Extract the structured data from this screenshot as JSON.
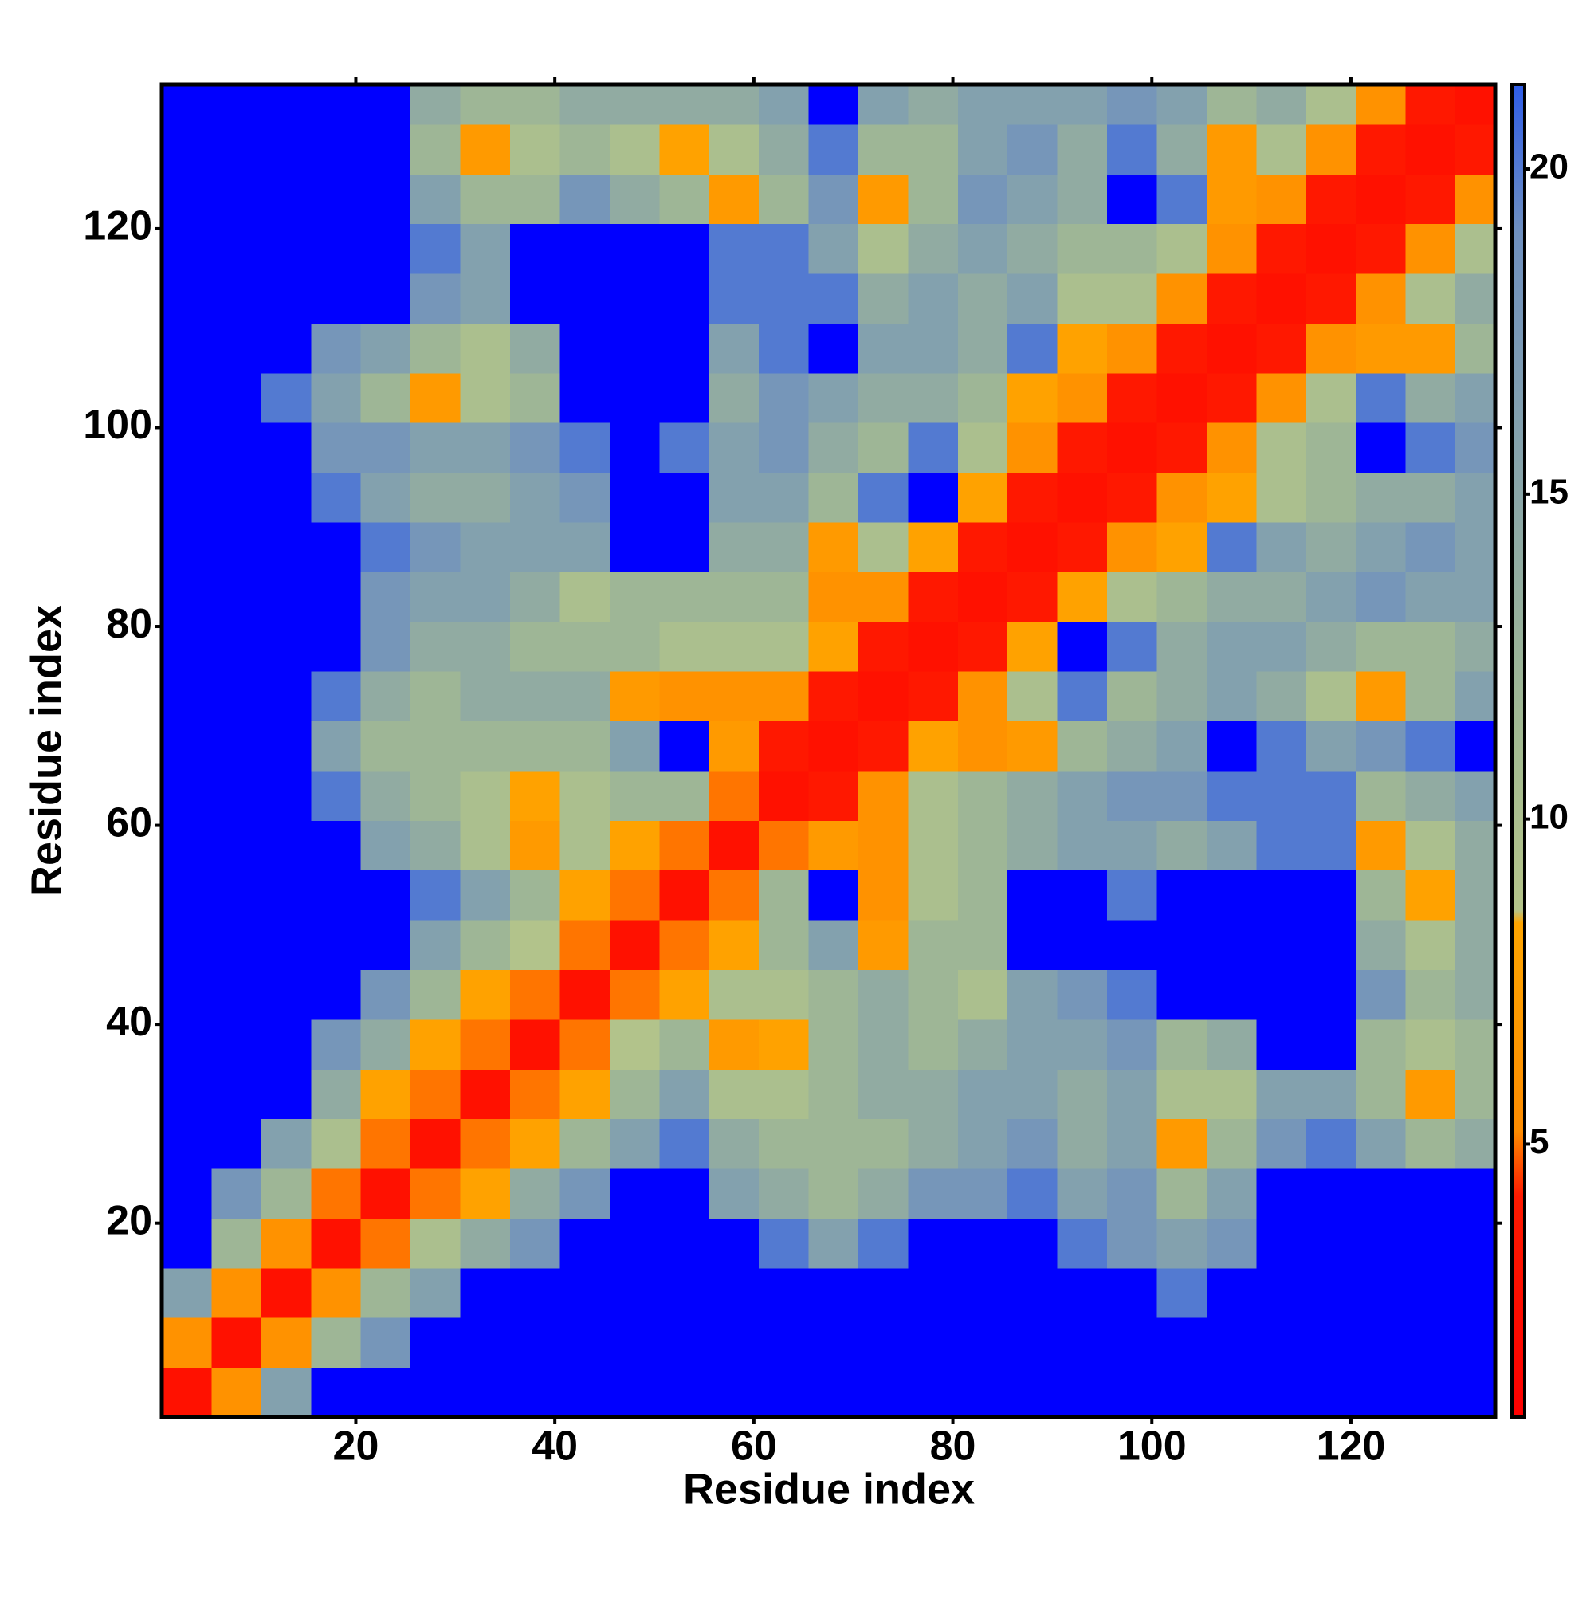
{
  "chart_data": {
    "type": "heatmap",
    "x_label": "Residue index",
    "y_label": "Residue index",
    "xlim": [
      0.5,
      134.5
    ],
    "ylim": [
      0.5,
      134.5
    ],
    "xticks": [
      20,
      40,
      60,
      80,
      100,
      120
    ],
    "yticks": [
      20,
      40,
      60,
      80,
      100,
      120
    ],
    "x_bins": [
      0.5,
      5.5,
      10.5,
      15.5,
      20.5,
      25.5,
      30.5,
      35.5,
      40.5,
      45.5,
      50.5,
      55.5,
      60.5,
      65.5,
      70.5,
      75.5,
      80.5,
      85.5,
      90.5,
      95.5,
      100.5,
      105.5,
      110.5,
      115.5,
      120.5,
      125.5,
      130.5,
      134.5
    ],
    "y_bins": [
      0.5,
      5.5,
      10.5,
      15.5,
      20.5,
      25.5,
      30.5,
      35.5,
      40.5,
      45.5,
      50.5,
      55.5,
      60.5,
      65.5,
      70.5,
      75.5,
      80.5,
      85.5,
      90.5,
      95.5,
      100.5,
      105.5,
      110.5,
      115.5,
      120.5,
      125.5,
      130.5,
      134.5
    ],
    "zlim": [
      0.8,
      21.3
    ],
    "zticks": [
      5,
      10,
      15,
      20
    ],
    "colorscale": [
      [
        0.8,
        "#ff0000"
      ],
      [
        4.2,
        "#ff1a00"
      ],
      [
        5.2,
        "#ff8c00"
      ],
      [
        8.4,
        "#ffa500"
      ],
      [
        8.6,
        "#b5c48a"
      ],
      [
        11,
        "#a4bb90"
      ],
      [
        15,
        "#8aa6a8"
      ],
      [
        19,
        "#6f90bf"
      ],
      [
        21.3,
        "#2f5de8"
      ]
    ],
    "over_color": "#0000ff",
    "values": [
      [
        3,
        6,
        16,
        25,
        25,
        25,
        25,
        25,
        25,
        25,
        25,
        25,
        25,
        25,
        25,
        25,
        25,
        25,
        25,
        25,
        25,
        25,
        25,
        25,
        25,
        25,
        25
      ],
      [
        6,
        3,
        6,
        12,
        18,
        25,
        25,
        25,
        25,
        25,
        25,
        25,
        25,
        25,
        25,
        25,
        25,
        25,
        25,
        25,
        25,
        25,
        25,
        25,
        25,
        25,
        25
      ],
      [
        16,
        6,
        3,
        6,
        12,
        16,
        25,
        25,
        25,
        25,
        25,
        25,
        25,
        25,
        25,
        25,
        25,
        25,
        25,
        25,
        20,
        25,
        25,
        25,
        25,
        25,
        25
      ],
      [
        25,
        12,
        6,
        3,
        5,
        10,
        14,
        18,
        25,
        25,
        25,
        25,
        20,
        16,
        20,
        25,
        25,
        25,
        20,
        18,
        16,
        18,
        25,
        25,
        25,
        25,
        25
      ],
      [
        25,
        18,
        12,
        5,
        3,
        5,
        8,
        14,
        18,
        25,
        25,
        16,
        14,
        12,
        14,
        18,
        18,
        20,
        16,
        18,
        12,
        16,
        25,
        25,
        25,
        25,
        25
      ],
      [
        25,
        25,
        16,
        10,
        5,
        3,
        5,
        8,
        12,
        16,
        20,
        14,
        12,
        12,
        12,
        14,
        16,
        18,
        14,
        16,
        7,
        12,
        18,
        20,
        16,
        12,
        14
      ],
      [
        25,
        25,
        25,
        14,
        8,
        5,
        3,
        5,
        8,
        12,
        16,
        10,
        10,
        12,
        14,
        14,
        16,
        16,
        14,
        16,
        10,
        10,
        16,
        16,
        12,
        7,
        12
      ],
      [
        25,
        25,
        25,
        18,
        14,
        8,
        5,
        3,
        5,
        9,
        12,
        7,
        8,
        12,
        14,
        12,
        14,
        16,
        16,
        18,
        12,
        14,
        25,
        25,
        12,
        10,
        12
      ],
      [
        25,
        25,
        25,
        25,
        18,
        12,
        8,
        5,
        3,
        5,
        8,
        10,
        10,
        12,
        14,
        12,
        10,
        16,
        18,
        20,
        25,
        25,
        25,
        25,
        18,
        12,
        14
      ],
      [
        25,
        25,
        25,
        25,
        25,
        16,
        12,
        9,
        5,
        3,
        5,
        8,
        12,
        16,
        7,
        12,
        12,
        25,
        25,
        25,
        25,
        25,
        25,
        25,
        14,
        10,
        14
      ],
      [
        25,
        25,
        25,
        25,
        25,
        20,
        16,
        12,
        8,
        5,
        3,
        5,
        12,
        25,
        6,
        10,
        12,
        25,
        25,
        20,
        25,
        25,
        25,
        25,
        12,
        8,
        14
      ],
      [
        25,
        25,
        25,
        25,
        16,
        14,
        10,
        7,
        10,
        8,
        5,
        3,
        5,
        7,
        6,
        10,
        12,
        14,
        16,
        16,
        14,
        16,
        20,
        20,
        7,
        10,
        14
      ],
      [
        25,
        25,
        25,
        20,
        14,
        12,
        10,
        8,
        10,
        12,
        12,
        5,
        3,
        4,
        6,
        10,
        12,
        14,
        16,
        18,
        18,
        20,
        20,
        20,
        12,
        14,
        16
      ],
      [
        25,
        25,
        25,
        16,
        12,
        12,
        12,
        12,
        12,
        16,
        25,
        7,
        4,
        3,
        4,
        8,
        6,
        7,
        12,
        14,
        16,
        25,
        20,
        16,
        18,
        20,
        25
      ],
      [
        25,
        25,
        25,
        20,
        14,
        12,
        14,
        14,
        14,
        7,
        6,
        6,
        6,
        4,
        3,
        4,
        6,
        10,
        20,
        12,
        14,
        16,
        14,
        10,
        7,
        12,
        16
      ],
      [
        25,
        25,
        25,
        25,
        18,
        14,
        14,
        12,
        12,
        12,
        10,
        10,
        10,
        8,
        4,
        3,
        4,
        8,
        25,
        20,
        14,
        16,
        16,
        14,
        12,
        12,
        14
      ],
      [
        25,
        25,
        25,
        25,
        18,
        16,
        16,
        14,
        10,
        12,
        12,
        12,
        12,
        6,
        6,
        4,
        3,
        4,
        8,
        10,
        12,
        14,
        14,
        16,
        18,
        16,
        16
      ],
      [
        25,
        25,
        25,
        25,
        20,
        18,
        16,
        16,
        16,
        25,
        25,
        14,
        14,
        7,
        10,
        8,
        4,
        3,
        4,
        6,
        8,
        20,
        16,
        14,
        16,
        18,
        16
      ],
      [
        25,
        25,
        25,
        20,
        16,
        14,
        14,
        16,
        18,
        25,
        25,
        16,
        16,
        12,
        20,
        25,
        8,
        4,
        3,
        4,
        6,
        8,
        10,
        12,
        14,
        14,
        16
      ],
      [
        25,
        25,
        25,
        18,
        18,
        16,
        16,
        18,
        20,
        25,
        20,
        16,
        18,
        14,
        12,
        20,
        10,
        6,
        4,
        3,
        4,
        6,
        10,
        12,
        25,
        20,
        18
      ],
      [
        25,
        25,
        20,
        16,
        12,
        7,
        10,
        12,
        25,
        25,
        25,
        14,
        18,
        16,
        14,
        14,
        12,
        8,
        6,
        4,
        3,
        4,
        6,
        10,
        20,
        14,
        16
      ],
      [
        25,
        25,
        25,
        18,
        16,
        12,
        10,
        14,
        25,
        25,
        25,
        16,
        20,
        25,
        16,
        16,
        14,
        20,
        8,
        6,
        4,
        3,
        4,
        6,
        7,
        7,
        12
      ],
      [
        25,
        25,
        25,
        25,
        25,
        18,
        16,
        25,
        25,
        25,
        25,
        20,
        20,
        20,
        14,
        16,
        14,
        16,
        10,
        10,
        6,
        4,
        3,
        4,
        6,
        10,
        14
      ],
      [
        25,
        25,
        25,
        25,
        25,
        20,
        16,
        25,
        25,
        25,
        25,
        20,
        20,
        16,
        10,
        14,
        16,
        14,
        12,
        12,
        10,
        6,
        4,
        3,
        4,
        6,
        10
      ],
      [
        25,
        25,
        25,
        25,
        25,
        16,
        12,
        12,
        18,
        14,
        12,
        7,
        12,
        18,
        7,
        12,
        18,
        16,
        14,
        25,
        20,
        7,
        6,
        4,
        3,
        4,
        6
      ],
      [
        25,
        25,
        25,
        25,
        25,
        12,
        7,
        10,
        12,
        10,
        8,
        10,
        14,
        20,
        12,
        12,
        16,
        18,
        14,
        20,
        14,
        7,
        10,
        6,
        4,
        3,
        4
      ],
      [
        25,
        25,
        25,
        25,
        25,
        14,
        12,
        12,
        14,
        14,
        14,
        14,
        16,
        25,
        16,
        14,
        16,
        16,
        16,
        18,
        16,
        12,
        14,
        10,
        6,
        4,
        3
      ]
    ]
  }
}
